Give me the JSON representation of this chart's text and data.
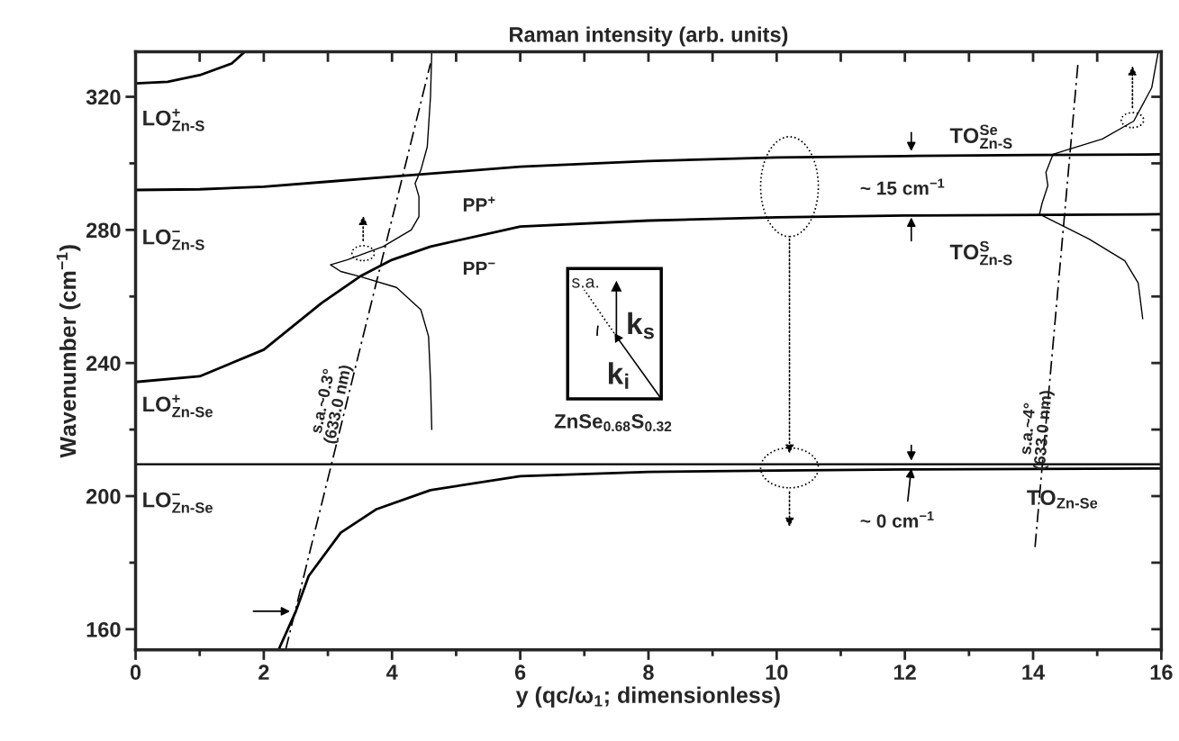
{
  "chart_data": {
    "type": "line",
    "title": "Raman intensity (arb. units)",
    "xlabel": "y (qc/ω$_{1}$; dimensionless)",
    "ylabel": "Wavenumber (cm$^{−1}$)",
    "xlim": [
      0,
      16
    ],
    "xticks": [
      0,
      2,
      4,
      6,
      8,
      10,
      12,
      14,
      16
    ],
    "ylim": [
      153.8,
      333.5
    ],
    "yticks": [
      160,
      200,
      240,
      280,
      320
    ],
    "grid": false,
    "legend": false,
    "marker": "none",
    "series": [
      {
        "color": "#000000",
        "x": [
          0,
          0.5,
          1,
          1.5,
          1.7
        ],
        "values": [
          324,
          324.5,
          326.5,
          330,
          333.5
        ]
      },
      {
        "color": "#000000",
        "x": [
          0,
          1,
          2,
          3,
          4,
          5,
          6,
          8,
          10,
          12,
          14,
          16
        ],
        "values": [
          292,
          292.2,
          293,
          294.5,
          296,
          297.5,
          299,
          300.7,
          301.8,
          302.2,
          302.5,
          302.7
        ]
      },
      {
        "color": "#000000",
        "x": [
          0,
          1,
          2,
          2.9,
          3.5,
          4,
          4.6,
          6,
          8,
          10,
          12,
          16
        ],
        "values": [
          234.3,
          236,
          244,
          258,
          266,
          271,
          275,
          281,
          282.8,
          283.8,
          284.3,
          284.7
        ]
      },
      {
        "color": "#000000",
        "x": [
          0,
          16
        ],
        "values": [
          209.6,
          209.6
        ]
      },
      {
        "color": "#000000",
        "x": [
          2.23,
          2.5,
          2.7,
          3.2,
          3.75,
          4.6,
          6,
          8,
          10,
          12,
          16
        ],
        "values": [
          153.8,
          165.4,
          176,
          189,
          196,
          201.8,
          206,
          207.3,
          207.7,
          208,
          208.3
        ]
      },
      {
        "color": "#000000",
        "x": [
          4.62,
          4.6,
          4.55,
          4.45,
          4.36,
          4.42,
          4.42,
          4.3,
          3.86,
          3.3,
          3.04,
          3.2,
          3.5,
          4.07,
          4.45,
          4.57,
          4.6,
          4.62
        ],
        "values": [
          333.5,
          320,
          305,
          298,
          294,
          290,
          284,
          280,
          275,
          271,
          269.5,
          267.5,
          266,
          262.7,
          256,
          248,
          235,
          220
        ]
      },
      {
        "color": "#000000",
        "x": [
          15.95,
          15.85,
          15.57,
          15.08,
          14.59,
          14.31,
          14.2,
          14.23,
          14.14,
          14.1,
          14.31,
          14.87,
          15.43,
          15.64,
          15.71
        ],
        "values": [
          333.3,
          322.7,
          312.7,
          307.3,
          304.4,
          302.7,
          297.3,
          293.3,
          288,
          284.7,
          282.7,
          277.3,
          270.7,
          264,
          253.3
        ]
      },
      {
        "color": "#000000",
        "line_style": "dashed",
        "x": [
          2.34,
          4.6
        ],
        "values": [
          153.8,
          330
        ]
      },
      {
        "color": "#000000",
        "line_style": "dashed",
        "x": [
          14.03,
          14.7
        ],
        "values": [
          184.7,
          330
        ]
      }
    ],
    "annotations": [
      "LO$^{+}$$_{Zn-S}$",
      "LO$^{−}$$_{Zn-S}$",
      "LO$^{+}$$_{Zn-Se}$",
      "LO$^{−}$$_{Zn-Se}$",
      "PP$^{+}$",
      "PP$^{−}$",
      "TO$^{Se}$$_{Zn-S}$",
      "TO$^{S}$$_{Zn-S}$",
      "TO$_{Zn-Se}$",
      "~ 15 cm$^{−1}$",
      {
        "text": "~ 0 cm$^{−1}$",
        "x": 12.1,
        "y": 208.3
      },
      "s.a.~0.3°\n(633.0 nm)",
      "s.a.~4°\n(633.0 nm)",
      "ZnSe$_{0.68}$S$_{0.32}$",
      "s.a.",
      "k$_{s}$",
      "k$_{i}$"
    ]
  }
}
